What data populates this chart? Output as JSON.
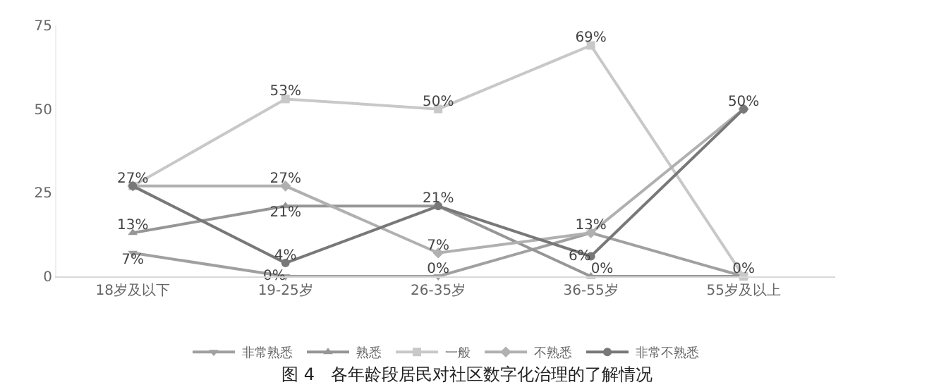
{
  "chart_data": {
    "type": "line",
    "title": "图 4   各年龄段居民对社区数字化治理的了解情况",
    "categories": [
      "18岁及以下",
      "19-25岁",
      "26-35岁",
      "36-55岁",
      "55岁及以上"
    ],
    "series": [
      {
        "name": "非常熟悉",
        "color": "#a0a0a0",
        "marker": "triangle-down",
        "values": [
          7,
          0,
          0,
          13,
          0
        ],
        "value_labels": [
          "7%",
          "0%",
          "0%",
          "13%",
          null
        ]
      },
      {
        "name": "熟悉",
        "color": "#969696",
        "marker": "triangle-up",
        "values": [
          13,
          21,
          21,
          0,
          0
        ],
        "value_labels": [
          "13%",
          "21%",
          null,
          "0%",
          null
        ]
      },
      {
        "name": "一般",
        "color": "#c8c8c8",
        "marker": "square",
        "values": [
          27,
          53,
          50,
          69,
          0
        ],
        "value_labels": [
          "27%",
          "53%",
          "50%",
          "69%",
          "0%"
        ]
      },
      {
        "name": "不熟悉",
        "color": "#b0b0b0",
        "marker": "diamond",
        "values": [
          27,
          27,
          7,
          13,
          50
        ],
        "value_labels": [
          null,
          "27%",
          "7%",
          null,
          null
        ]
      },
      {
        "name": "非常不熟悉",
        "color": "#787878",
        "marker": "circle",
        "values": [
          27,
          4,
          21,
          6,
          50
        ],
        "value_labels": [
          null,
          "4%",
          "21%",
          "6%",
          "50%"
        ]
      }
    ],
    "ylim": [
      0,
      75
    ],
    "yticks": [
      0,
      25,
      50,
      75
    ],
    "grid": false,
    "legend": "bottom",
    "line_style": "solid"
  }
}
